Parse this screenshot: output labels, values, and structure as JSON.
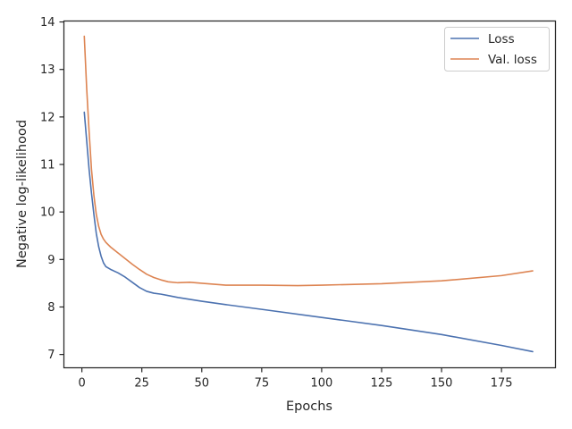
{
  "chart_data": {
    "type": "line",
    "xlabel": "Epochs",
    "ylabel": "Negative log-likelihood",
    "xlim": [
      -7.5,
      197.5
    ],
    "ylim": [
      6.72,
      14.02
    ],
    "xticks": [
      0,
      25,
      50,
      75,
      100,
      125,
      150,
      175
    ],
    "yticks": [
      7,
      8,
      9,
      10,
      11,
      12,
      13,
      14
    ],
    "grid": false,
    "legend": "top-right",
    "series": [
      {
        "name": "Loss",
        "color": "#4c72b0",
        "x": [
          1,
          2,
          3,
          4,
          5,
          6,
          7,
          8,
          9,
          10,
          12,
          15,
          18,
          21,
          24,
          27,
          30,
          33,
          36,
          40,
          45,
          50,
          60,
          75,
          100,
          125,
          150,
          175,
          188
        ],
        "y": [
          12.1,
          11.5,
          10.9,
          10.4,
          9.95,
          9.55,
          9.27,
          9.07,
          8.93,
          8.85,
          8.79,
          8.72,
          8.63,
          8.52,
          8.41,
          8.33,
          8.29,
          8.27,
          8.24,
          8.2,
          8.16,
          8.12,
          8.05,
          7.95,
          7.78,
          7.61,
          7.42,
          7.19,
          7.06
        ]
      },
      {
        "name": "Val. loss",
        "color": "#dd8452",
        "x": [
          1,
          2,
          3,
          4,
          5,
          6,
          7,
          8,
          9,
          10,
          12,
          15,
          18,
          21,
          24,
          27,
          30,
          33,
          36,
          40,
          45,
          50,
          60,
          75,
          90,
          100,
          125,
          150,
          175,
          188
        ],
        "y": [
          13.7,
          12.6,
          11.7,
          10.9,
          10.35,
          9.95,
          9.7,
          9.53,
          9.43,
          9.36,
          9.26,
          9.14,
          9.02,
          8.9,
          8.79,
          8.69,
          8.62,
          8.57,
          8.53,
          8.51,
          8.52,
          8.5,
          8.46,
          8.46,
          8.45,
          8.46,
          8.49,
          8.55,
          8.66,
          8.76
        ]
      }
    ]
  }
}
